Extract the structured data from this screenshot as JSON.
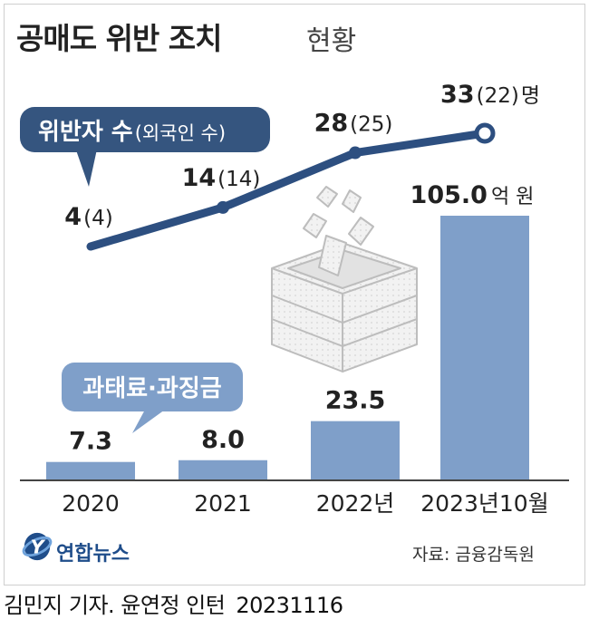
{
  "title": "공매도 위반 조치",
  "subtitle": "현황",
  "source": "자료: 금융감독원",
  "agency": "연합뉴스",
  "credit": "김민지 기자. 윤연정 인턴",
  "credit_date": "20231116",
  "colors": {
    "bar": "#7f9fc9",
    "line": "#2d4f80",
    "callout_line": "#35557f",
    "callout_bar": "#7f9fc9",
    "text": "#222222",
    "brand": "#1f4d8a"
  },
  "icons": [
    "money-stack-icon",
    "yonhap-logo-icon"
  ],
  "chart_data": [
    {
      "type": "line",
      "legend_label": "위반자 수",
      "legend_sub_label": "(외국인 수)",
      "categories": [
        "2020",
        "2021",
        "2022년",
        "2023년10월"
      ],
      "series": [
        {
          "name": "위반자 수",
          "values": [
            4,
            14,
            28,
            33
          ]
        },
        {
          "name": "외국인 수",
          "values": [
            4,
            14,
            25,
            22
          ]
        }
      ],
      "data_labels": [
        "4",
        "14",
        "28",
        "33"
      ],
      "sub_labels": [
        "(4)",
        "(14)",
        "(25)",
        "(22)"
      ],
      "last_unit": "명"
    },
    {
      "type": "bar",
      "legend_label": "과태료·과징금",
      "categories": [
        "2020",
        "2021",
        "2022년",
        "2023년10월"
      ],
      "values": [
        7.3,
        8.0,
        23.5,
        105.0
      ],
      "data_labels": [
        "7.3",
        "8.0",
        "23.5",
        "105.0"
      ],
      "last_unit": "억 원"
    }
  ]
}
